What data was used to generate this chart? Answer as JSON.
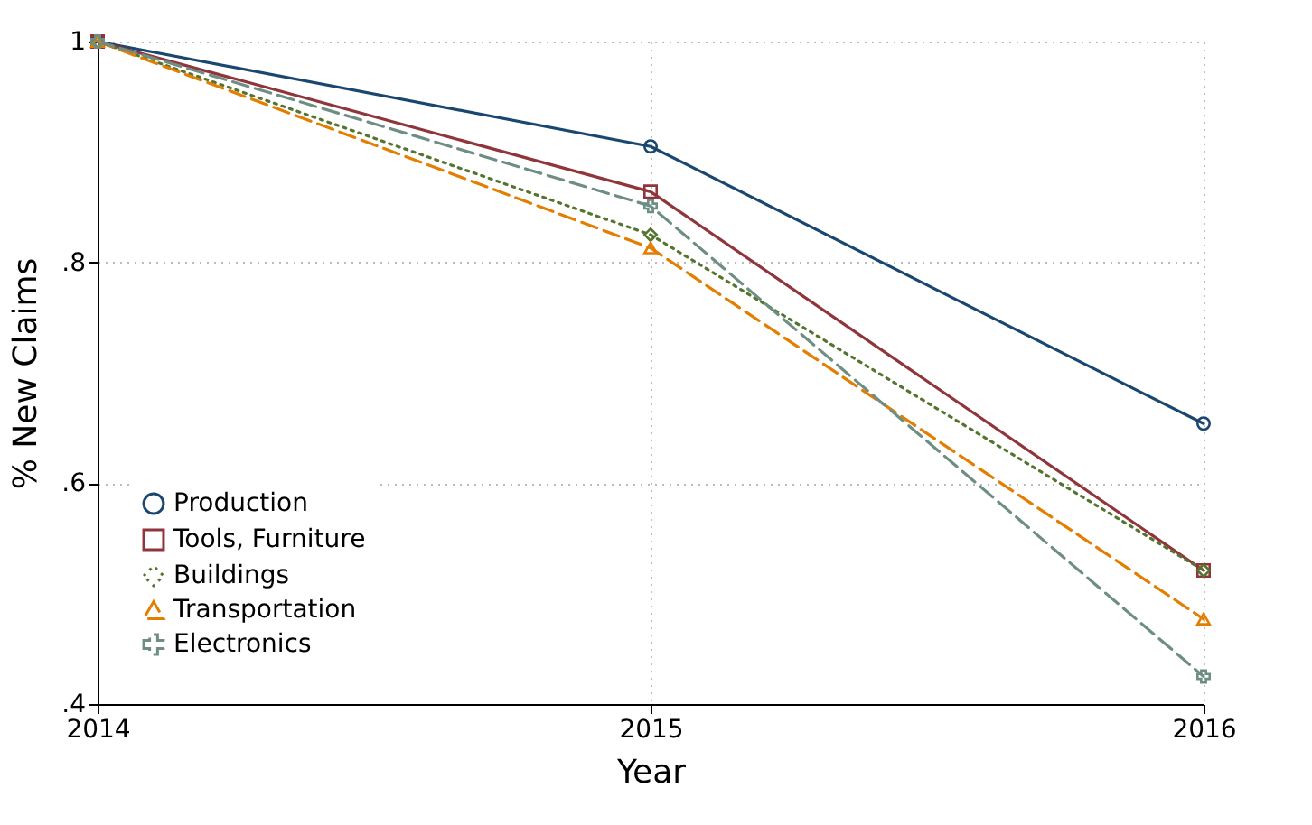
{
  "chart_data": {
    "type": "line",
    "xlabel": "Year",
    "ylabel": "% New Claims",
    "x": [
      2014,
      2015,
      2016
    ],
    "xlim": [
      2014,
      2016
    ],
    "xticks": [
      2014,
      2015,
      2016
    ],
    "ylim": [
      0.4,
      1
    ],
    "yticks": [
      {
        "value": 0.4,
        "label": ".4"
      },
      {
        "value": 0.6,
        "label": ".6"
      },
      {
        "value": 0.8,
        "label": ".8"
      },
      1
    ],
    "grid": true,
    "legend": "bottom left",
    "series": [
      {
        "name": "Production",
        "color": "#1a476f",
        "values": [
          1,
          0.905,
          0.654
        ],
        "marker": "circle",
        "line_style": "solid"
      },
      {
        "name": "Tools, Furniture",
        "color": "#90353b",
        "values": [
          1,
          0.864,
          0.521
        ],
        "marker": "square",
        "line_style": "solid"
      },
      {
        "name": "Buildings",
        "color": "#55752f",
        "values": [
          1,
          0.825,
          0.521
        ],
        "marker": "diamond",
        "line_style": "dotted"
      },
      {
        "name": "Transportation",
        "color": "#e37e00",
        "values": [
          1,
          0.813,
          0.477
        ],
        "marker": "triangle",
        "line_style": "dashed"
      },
      {
        "name": "Electronics",
        "color": "#6e8e84",
        "values": [
          1,
          0.851,
          0.425
        ],
        "marker": "cross",
        "line_style": "dashed"
      }
    ]
  }
}
